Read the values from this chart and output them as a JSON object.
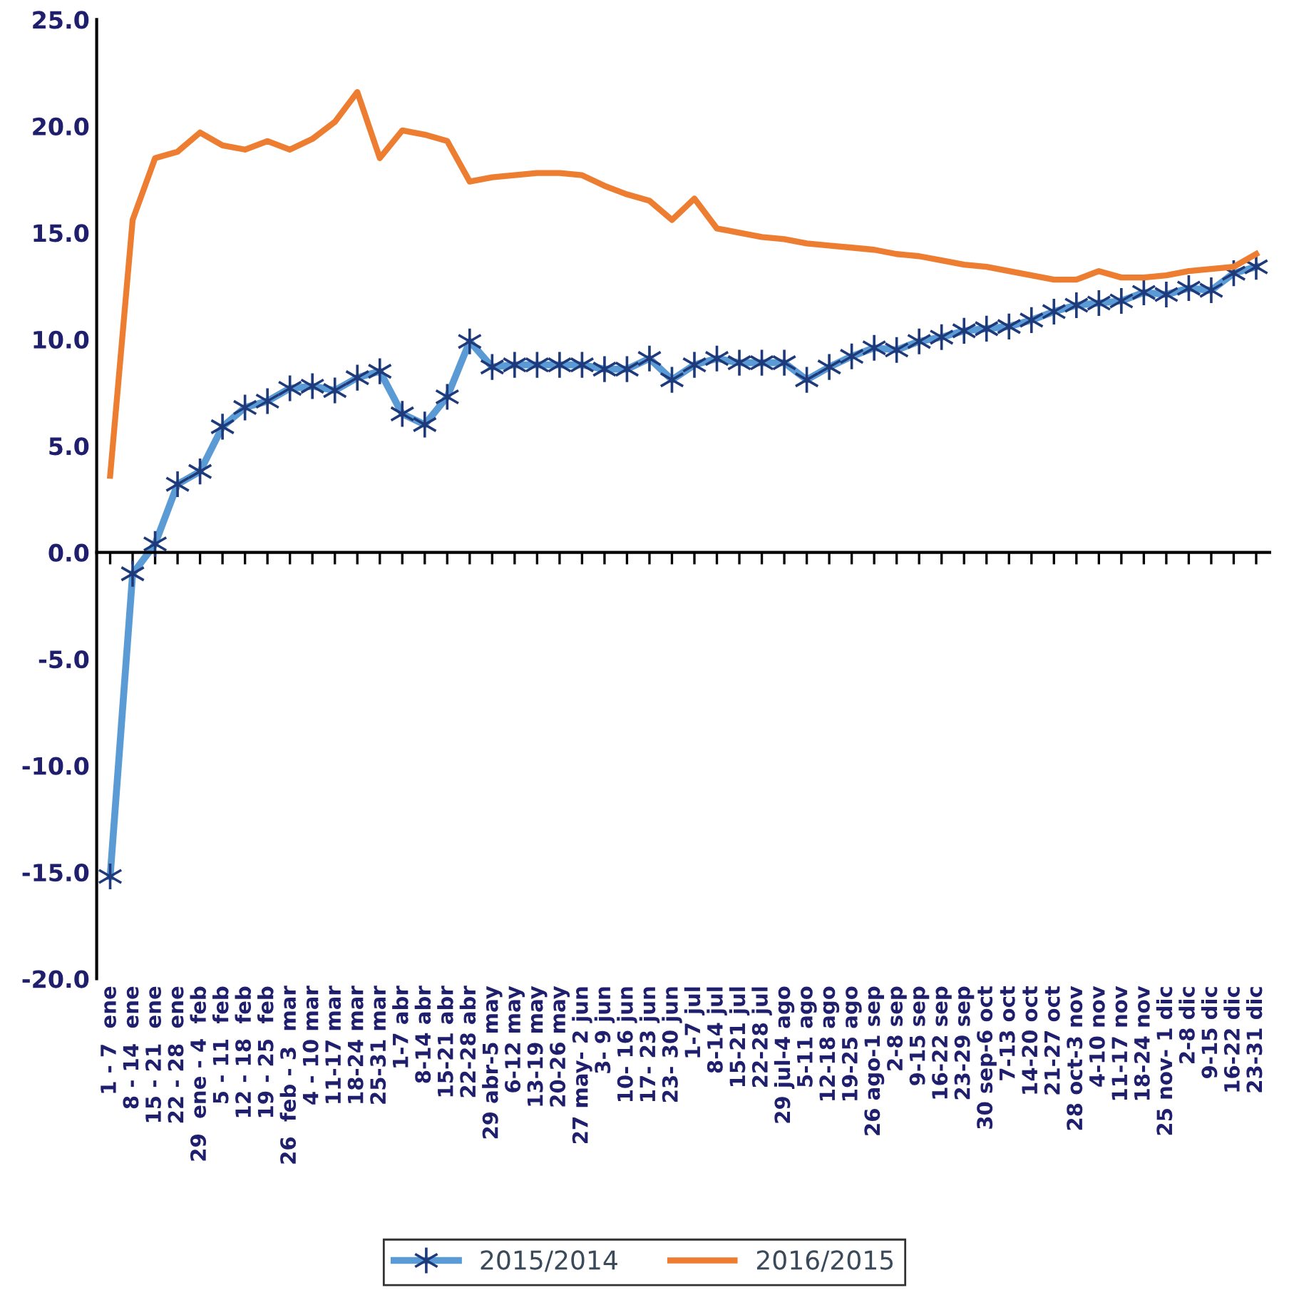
{
  "chart_data": {
    "type": "line",
    "categories": [
      "1 - 7  ene",
      "8 - 14  ene",
      "15 - 21  ene",
      "22 - 28  ene",
      "29  ene - 4  feb",
      "5 - 11  feb",
      "12 - 18  feb",
      "19 - 25  feb",
      "26  feb - 3  mar",
      "4 - 10 mar",
      "11-17 mar",
      "18-24 mar",
      "25-31 mar",
      "1-7 abr",
      "8-14 abr",
      "15-21 abr",
      "22-28 abr",
      "29 abr-5 may",
      "6-12 may",
      "13-19 may",
      "20-26 may",
      "27 may- 2 jun",
      "3- 9 jun",
      "10- 16 jun",
      "17- 23 jun",
      "23- 30 jun",
      "1-7 jul",
      "8-14 jul",
      "15-21 jul",
      "22-28 jul",
      "29 jul-4 ago",
      "5-11 ago",
      "12-18 ago",
      "19-25 ago",
      "26 ago-1 sep",
      "2-8 sep",
      "9-15 sep",
      "16-22 sep",
      "23-29 sep",
      "30 sep-6 oct",
      "7-13 oct",
      "14-20 oct",
      "21-27 oct",
      "28 oct-3 nov",
      "4-10 nov",
      "11-17 nov",
      "18-24 nov",
      "25 nov- 1 dic",
      "2-8 dic",
      "9-15 dic",
      "16-22 dic",
      "23-31 dic"
    ],
    "series": [
      {
        "name": "2015/2014",
        "color": "#5b9bd5",
        "marker": "cross",
        "values": [
          -15.2,
          -1.0,
          0.4,
          3.2,
          3.8,
          5.9,
          6.8,
          7.1,
          7.7,
          7.8,
          7.6,
          8.2,
          8.5,
          6.5,
          6.0,
          7.3,
          9.9,
          8.7,
          8.8,
          8.8,
          8.8,
          8.8,
          8.6,
          8.6,
          9.1,
          8.1,
          8.8,
          9.1,
          8.9,
          8.9,
          8.9,
          8.1,
          8.7,
          9.2,
          9.6,
          9.5,
          9.9,
          10.1,
          10.4,
          10.5,
          10.6,
          10.9,
          11.3,
          11.6,
          11.7,
          11.8,
          12.2,
          12.1,
          12.4,
          12.3,
          13.1,
          13.4
        ]
      },
      {
        "name": "2016/2015",
        "color": "#ed7d31",
        "marker": "none",
        "values": [
          3.6,
          15.6,
          18.5,
          18.8,
          19.7,
          19.1,
          18.9,
          19.3,
          18.9,
          19.4,
          20.2,
          21.6,
          18.5,
          19.8,
          19.6,
          19.3,
          17.4,
          17.6,
          17.7,
          17.8,
          17.8,
          17.7,
          17.2,
          16.8,
          16.5,
          15.6,
          16.6,
          15.2,
          15.0,
          14.8,
          14.7,
          14.5,
          14.4,
          14.3,
          14.2,
          14.0,
          13.9,
          13.7,
          13.5,
          13.4,
          13.2,
          13.0,
          12.8,
          12.8,
          13.2,
          12.9,
          12.9,
          13.0,
          13.2,
          13.3,
          13.4,
          14.0
        ]
      }
    ],
    "ylim": [
      -20,
      25
    ],
    "yticks": [
      {
        "value": -20,
        "label": "-20.0"
      },
      {
        "value": -15,
        "label": "-15.0"
      },
      {
        "value": -10,
        "label": "-10.0"
      },
      {
        "value": -5,
        "label": "-5.0"
      },
      {
        "value": 0,
        "label": "0.0"
      },
      {
        "value": 5,
        "label": "5.0"
      },
      {
        "value": 10,
        "label": "10.0"
      },
      {
        "value": 15,
        "label": "15.0"
      },
      {
        "value": 20,
        "label": "20.0"
      },
      {
        "value": 25,
        "label": "25.0"
      }
    ],
    "legend": "bottom"
  }
}
